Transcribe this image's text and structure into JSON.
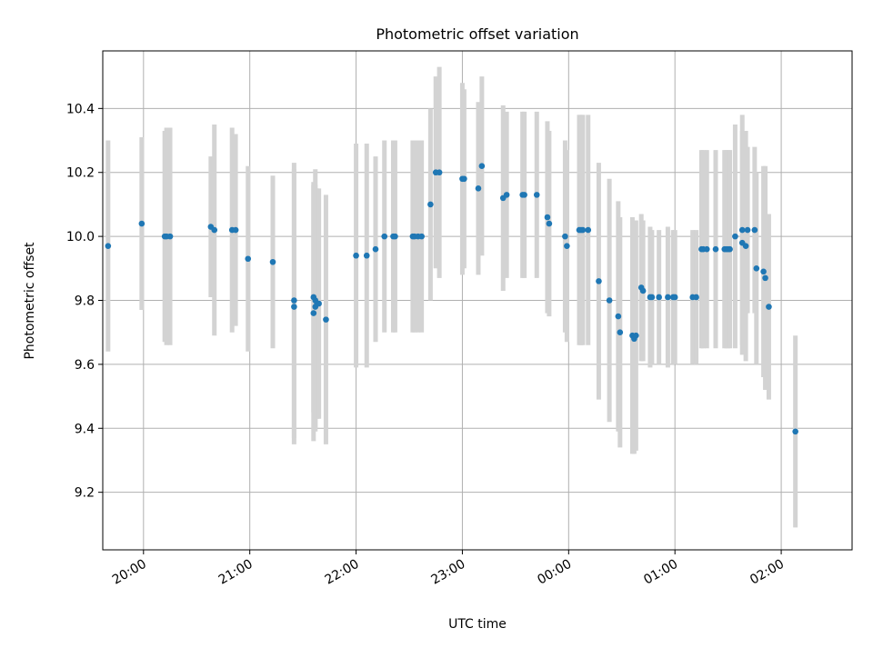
{
  "chart_data": {
    "type": "scatter",
    "title": "Photometric offset variation",
    "xlabel": "UTC time",
    "ylabel": "Photometric offset",
    "x_unit": "UTC time (HH:MM)",
    "xlim": [
      "19:37",
      "02:40"
    ],
    "ylim": [
      9.02,
      10.58
    ],
    "grid": true,
    "xticks": [
      "20:00",
      "21:00",
      "22:00",
      "23:00",
      "00:00",
      "01:00",
      "02:00"
    ],
    "yticks": [
      9.2,
      9.4,
      9.6,
      9.8,
      10.0,
      10.2,
      10.4
    ],
    "point_color": "#1f77b4",
    "errorbar_color": "#d3d3d3",
    "series": [
      {
        "x": [
          "19:40",
          "19:59",
          "20:12",
          "20:13",
          "20:15",
          "20:38",
          "20:40",
          "20:50",
          "20:52",
          "20:59",
          "21:13",
          "21:25",
          "21:25",
          "21:36",
          "21:36",
          "21:37",
          "21:37",
          "21:38",
          "21:39",
          "21:43",
          "22:00",
          "22:06",
          "22:11",
          "22:16",
          "22:21",
          "22:22",
          "22:32",
          "22:33",
          "22:35",
          "22:37",
          "22:42",
          "22:45",
          "22:47",
          "23:00",
          "23:01",
          "23:09",
          "23:11",
          "23:23",
          "23:25",
          "23:34",
          "23:35",
          "23:42",
          "23:48",
          "23:49",
          "23:58",
          "23:59",
          "00:06",
          "00:07",
          "00:08",
          "00:11",
          "00:17",
          "00:23",
          "00:28",
          "00:29",
          "00:36",
          "00:37",
          "00:38",
          "00:41",
          "00:42",
          "00:46",
          "00:47",
          "00:51",
          "00:56",
          "00:59",
          "01:00",
          "01:10",
          "01:12",
          "01:15",
          "01:16",
          "01:18",
          "01:23",
          "01:28",
          "01:29",
          "01:30",
          "01:31",
          "01:34",
          "01:38",
          "01:38",
          "01:40",
          "01:41",
          "01:45",
          "01:46",
          "01:50",
          "01:51",
          "01:53"
        ],
        "y": [
          9.97,
          10.04,
          10.0,
          10.0,
          10.0,
          10.03,
          10.02,
          10.02,
          10.02,
          9.93,
          9.92,
          9.8,
          9.78,
          9.81,
          9.76,
          9.8,
          9.78,
          9.79,
          9.79,
          9.74,
          9.94,
          9.94,
          9.96,
          10.0,
          10.0,
          10.0,
          10.0,
          10.0,
          10.0,
          10.0,
          10.1,
          10.2,
          10.2,
          10.18,
          10.18,
          10.15,
          10.22,
          10.12,
          10.13,
          10.13,
          10.13,
          10.13,
          10.06,
          10.04,
          10.0,
          9.97,
          10.02,
          10.02,
          10.02,
          10.02,
          9.86,
          9.8,
          9.75,
          9.7,
          9.69,
          9.68,
          9.69,
          9.84,
          9.83,
          9.81,
          9.81,
          9.81,
          9.81,
          9.81,
          9.81,
          9.81,
          9.81,
          9.96,
          9.96,
          9.96,
          9.96,
          9.96,
          9.96,
          9.96,
          9.96,
          10.0,
          10.02,
          9.98,
          9.97,
          10.02,
          10.02,
          9.9,
          9.89,
          9.87,
          9.78
        ],
        "yerr": [
          0.33,
          0.27,
          0.33,
          0.34,
          0.34,
          0.22,
          0.33,
          0.32,
          0.3,
          0.29,
          0.27,
          0.43,
          0.43,
          0.36,
          0.4,
          0.41,
          0.38,
          0.36,
          0.36,
          0.39,
          0.35,
          0.35,
          0.29,
          0.3,
          0.3,
          0.3,
          0.3,
          0.3,
          0.3,
          0.3,
          0.3,
          0.3,
          0.33,
          0.3,
          0.28,
          0.27,
          0.28,
          0.29,
          0.26,
          0.26,
          0.26,
          0.26,
          0.3,
          0.29,
          0.3,
          0.3,
          0.36,
          0.36,
          0.36,
          0.36,
          0.37,
          0.38,
          0.36,
          0.36,
          0.37,
          0.36,
          0.36,
          0.23,
          0.22,
          0.22,
          0.21,
          0.21,
          0.22,
          0.21,
          0.21,
          0.21,
          0.21,
          0.31,
          0.31,
          0.31,
          0.31,
          0.31,
          0.31,
          0.31,
          0.31,
          0.35,
          0.36,
          0.35,
          0.36,
          0.26,
          0.26,
          0.3,
          0.33,
          0.35,
          0.29
        ]
      }
    ],
    "extra_points": [
      {
        "x": "02:08",
        "y": 9.39,
        "yerr": 0.3
      }
    ]
  }
}
